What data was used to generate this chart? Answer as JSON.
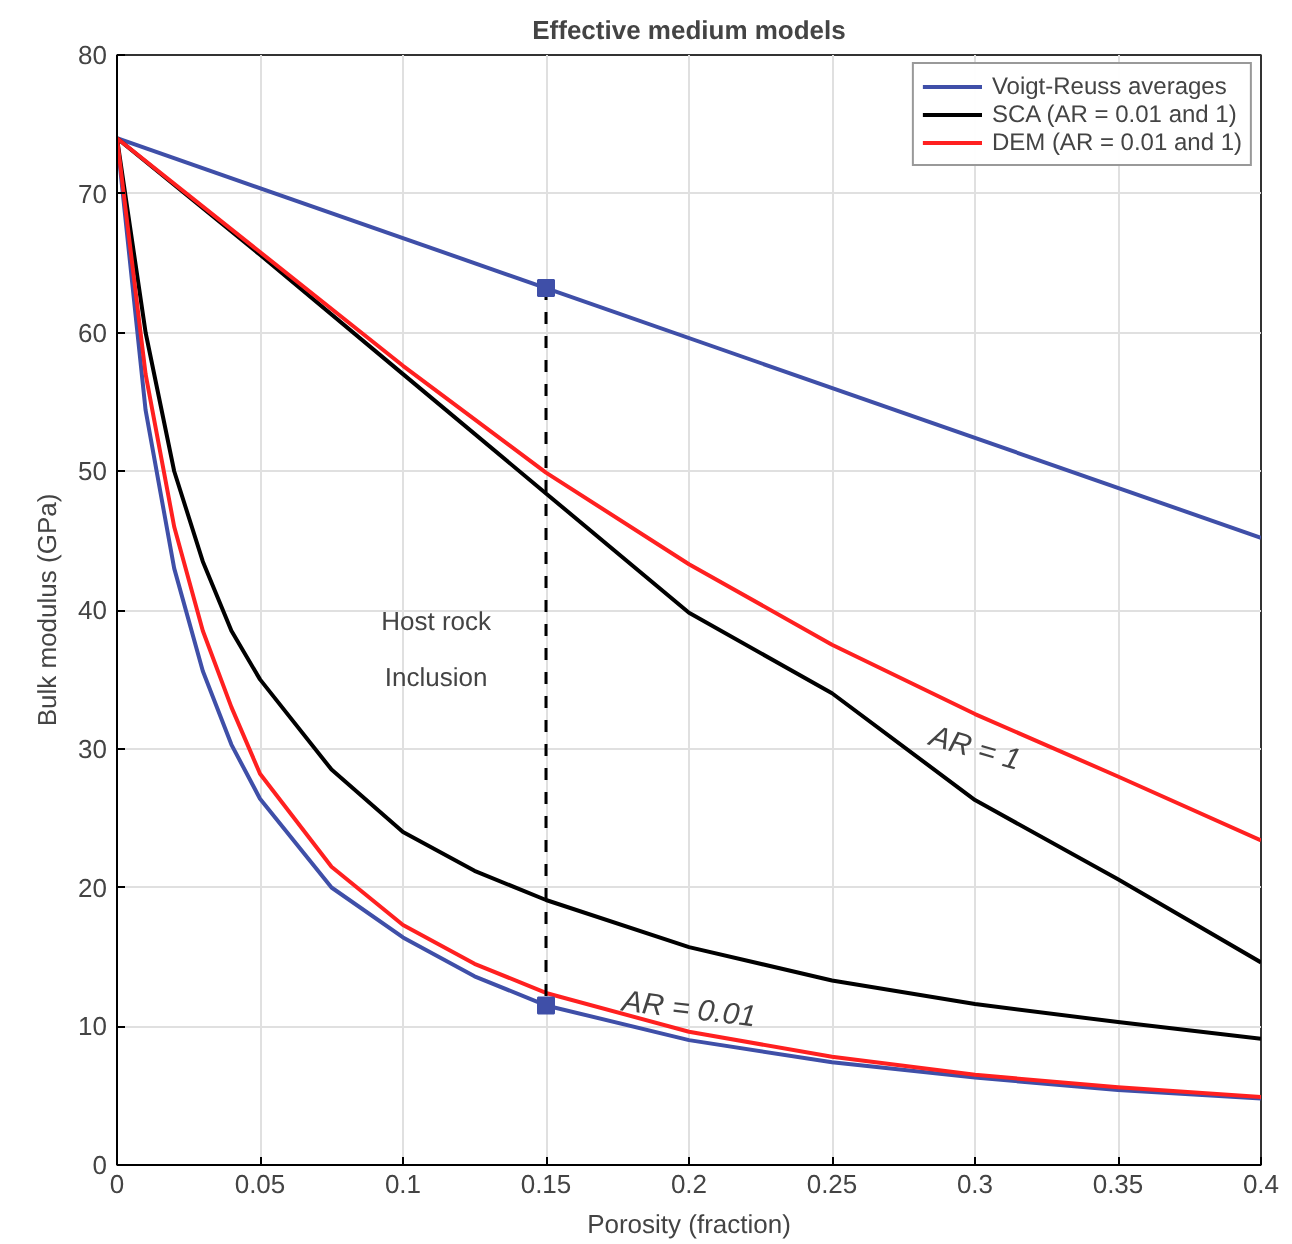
{
  "chart_data": {
    "type": "line",
    "title": "Effective medium models",
    "xlabel": "Porosity (fraction)",
    "ylabel": "Bulk modulus (GPa)",
    "xlim": [
      0,
      0.4
    ],
    "ylim": [
      0,
      80
    ],
    "xticks": [
      0,
      0.05,
      0.1,
      0.15,
      0.2,
      0.25,
      0.3,
      0.35,
      0.4
    ],
    "yticks": [
      0,
      10,
      20,
      30,
      40,
      50,
      60,
      70,
      80
    ],
    "grid": true,
    "legend": "top right",
    "marker": "none",
    "line_style": "solid",
    "series": [
      {
        "name": "Voigt-Reuss averages",
        "color": "#3f4fa8",
        "x": [
          0,
          0.4
        ],
        "values": [
          74,
          45.2
        ]
      },
      {
        "color": "#3f4fa8",
        "x": [
          0,
          0.01,
          0.02,
          0.03,
          0.04,
          0.05,
          0.075,
          0.1,
          0.125,
          0.15,
          0.2,
          0.25,
          0.3,
          0.35,
          0.4
        ],
        "values": [
          74,
          54.4,
          43.0,
          35.6,
          30.3,
          26.4,
          20.0,
          16.4,
          13.6,
          11.5,
          9.0,
          7.4,
          6.3,
          5.4,
          4.8
        ]
      },
      {
        "name": "SCA (AR = 0.01 and 1)",
        "color": "#000000",
        "x": [
          0,
          0.05,
          0.1,
          0.15,
          0.2,
          0.25,
          0.3,
          0.35,
          0.4
        ],
        "values": [
          74,
          65.6,
          57.0,
          48.4,
          39.8,
          34.0,
          26.3,
          20.6,
          14.6
        ]
      },
      {
        "color": "#000000",
        "x": [
          0,
          0.01,
          0.02,
          0.03,
          0.04,
          0.05,
          0.075,
          0.1,
          0.125,
          0.15,
          0.2,
          0.25,
          0.3,
          0.35,
          0.4
        ],
        "values": [
          74,
          60.0,
          50.0,
          43.5,
          38.5,
          35.0,
          28.5,
          24.0,
          21.2,
          19.1,
          15.7,
          13.3,
          11.6,
          10.3,
          9.1
        ]
      },
      {
        "name": "DEM (AR = 0.01 and 1)",
        "color": "#ff2020",
        "x": [
          0,
          0.05,
          0.1,
          0.15,
          0.2,
          0.25,
          0.3,
          0.35,
          0.4
        ],
        "values": [
          74,
          65.8,
          57.6,
          49.9,
          43.3,
          37.5,
          32.5,
          28.0,
          23.4
        ]
      },
      {
        "color": "#ff2020",
        "x": [
          0,
          0.01,
          0.02,
          0.03,
          0.04,
          0.05,
          0.075,
          0.1,
          0.125,
          0.15,
          0.2,
          0.25,
          0.3,
          0.35,
          0.4
        ],
        "values": [
          74,
          57.0,
          46.0,
          38.5,
          33.0,
          28.2,
          21.5,
          17.3,
          14.5,
          12.4,
          9.6,
          7.8,
          6.5,
          5.6,
          4.9
        ]
      },
      {
        "marker": "square",
        "line_style": "dashed",
        "color": "#000000",
        "colors": [
          "#3f4fa8",
          "#3f4fa8"
        ],
        "x": [
          0.15,
          0.15
        ],
        "values": [
          63.2,
          11.5
        ]
      }
    ],
    "annotations": [
      "AR = 1",
      "AR = 0.01",
      "Host rock",
      "Inclusion"
    ]
  }
}
